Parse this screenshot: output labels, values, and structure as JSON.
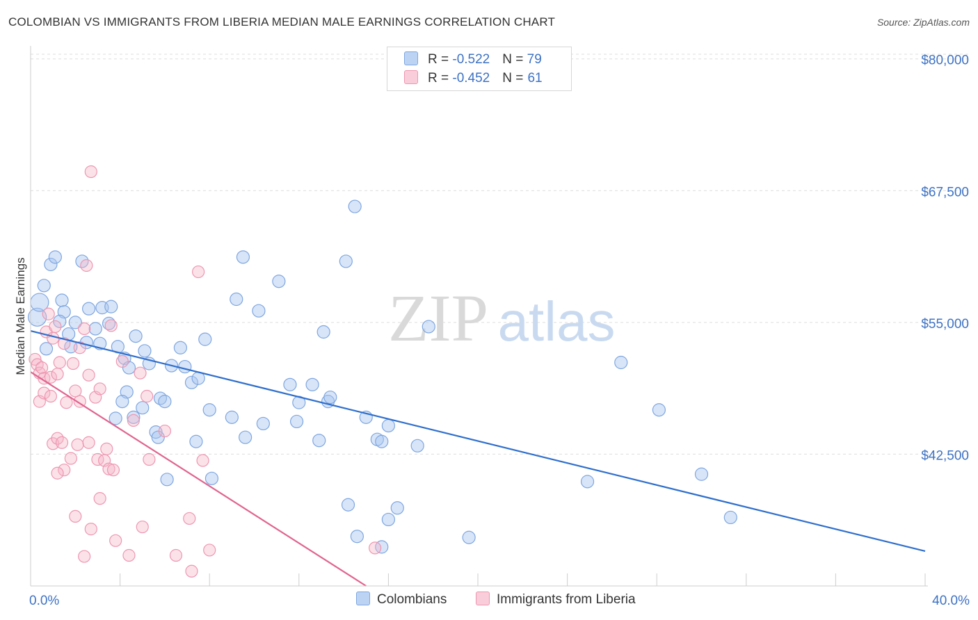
{
  "header": {
    "title": "COLOMBIAN VS IMMIGRANTS FROM LIBERIA MEDIAN MALE EARNINGS CORRELATION CHART",
    "source": "Source: ZipAtlas.com"
  },
  "watermark": {
    "zip": "ZIP",
    "atlas": "atlas"
  },
  "legend_top": {
    "rows": [
      {
        "r_label": "R = ",
        "r_value": "-0.522",
        "n_label": "N = ",
        "n_value": "79"
      },
      {
        "r_label": "R = ",
        "r_value": "-0.452",
        "n_label": "N = ",
        "n_value": "61"
      }
    ]
  },
  "chart_data": {
    "type": "scatter",
    "title": "COLOMBIAN VS IMMIGRANTS FROM LIBERIA MEDIAN MALE EARNINGS CORRELATION CHART",
    "xlabel": "",
    "ylabel": "Median Male Earnings",
    "xlim": [
      0,
      40
    ],
    "ylim": [
      30000,
      81500
    ],
    "x_tick_labels": [
      "0.0%",
      "40.0%"
    ],
    "y_ticks": [
      42500,
      55000,
      67500,
      80000
    ],
    "y_tick_labels": [
      "$42,500",
      "$55,000",
      "$67,500",
      "$80,000"
    ],
    "grid": true,
    "legend_placement": "top-center and bottom",
    "colors": {
      "colombians": "#a9c6ef",
      "colombians_line": "#2f6fcc",
      "liberia": "#f5b7c8",
      "liberia_line": "#e0648f"
    },
    "series": [
      {
        "name": "Colombians",
        "r": -0.522,
        "n": 79,
        "trend": [
          [
            0,
            54200
          ],
          [
            40,
            33300
          ]
        ],
        "points": [
          [
            0.3,
            55500
          ],
          [
            0.4,
            56900
          ],
          [
            0.6,
            58500
          ],
          [
            0.9,
            60500
          ],
          [
            1.1,
            61200
          ],
          [
            1.4,
            57100
          ],
          [
            1.5,
            56000
          ],
          [
            1.3,
            55100
          ],
          [
            1.7,
            53900
          ],
          [
            2.3,
            60800
          ],
          [
            2.6,
            56300
          ],
          [
            2.0,
            55000
          ],
          [
            2.5,
            53100
          ],
          [
            2.9,
            54400
          ],
          [
            3.1,
            53000
          ],
          [
            3.2,
            56400
          ],
          [
            3.5,
            54900
          ],
          [
            3.6,
            56500
          ],
          [
            3.9,
            52700
          ],
          [
            4.2,
            51600
          ],
          [
            4.4,
            50700
          ],
          [
            4.3,
            48400
          ],
          [
            4.7,
            53700
          ],
          [
            5.1,
            52300
          ],
          [
            5.3,
            51100
          ],
          [
            5.0,
            46900
          ],
          [
            4.1,
            47500
          ],
          [
            3.8,
            45900
          ],
          [
            4.6,
            46000
          ],
          [
            5.8,
            47800
          ],
          [
            6.0,
            47500
          ],
          [
            5.6,
            44600
          ],
          [
            5.7,
            44100
          ],
          [
            6.3,
            50900
          ],
          [
            6.9,
            50800
          ],
          [
            7.2,
            49300
          ],
          [
            6.7,
            52600
          ],
          [
            7.8,
            53400
          ],
          [
            9.2,
            57200
          ],
          [
            9.5,
            61200
          ],
          [
            7.5,
            49700
          ],
          [
            8.0,
            46700
          ],
          [
            9.0,
            46000
          ],
          [
            7.4,
            43700
          ],
          [
            9.6,
            44100
          ],
          [
            10.4,
            45400
          ],
          [
            10.2,
            56100
          ],
          [
            11.1,
            58900
          ],
          [
            11.6,
            49100
          ],
          [
            11.9,
            45600
          ],
          [
            12.0,
            47400
          ],
          [
            12.6,
            49100
          ],
          [
            12.9,
            43800
          ],
          [
            13.3,
            47500
          ],
          [
            13.4,
            47900
          ],
          [
            13.1,
            54100
          ],
          [
            14.1,
            60800
          ],
          [
            15.0,
            46000
          ],
          [
            15.5,
            43900
          ],
          [
            15.7,
            43700
          ],
          [
            16.0,
            45200
          ],
          [
            16.4,
            37400
          ],
          [
            17.3,
            43300
          ],
          [
            14.5,
            66000
          ],
          [
            17.8,
            54600
          ],
          [
            14.2,
            37700
          ],
          [
            14.6,
            34700
          ],
          [
            16.0,
            36300
          ],
          [
            15.7,
            33700
          ],
          [
            19.6,
            34600
          ],
          [
            24.9,
            39900
          ],
          [
            26.4,
            51200
          ],
          [
            28.1,
            46700
          ],
          [
            30.0,
            40600
          ],
          [
            31.3,
            36500
          ],
          [
            0.7,
            52500
          ],
          [
            1.8,
            52700
          ],
          [
            6.1,
            40100
          ],
          [
            8.1,
            40200
          ]
        ],
        "point_sizes": {
          "large_index": [
            0,
            1
          ]
        }
      },
      {
        "name": "Immigrants from Liberia",
        "r": -0.452,
        "n": 61,
        "trend": [
          [
            0,
            50300
          ],
          [
            15.0,
            30000
          ]
        ],
        "points": [
          [
            0.2,
            51500
          ],
          [
            0.3,
            51000
          ],
          [
            0.4,
            50200
          ],
          [
            0.5,
            50700
          ],
          [
            0.6,
            49700
          ],
          [
            0.8,
            55800
          ],
          [
            0.7,
            54100
          ],
          [
            1.0,
            53500
          ],
          [
            1.1,
            54600
          ],
          [
            0.9,
            49800
          ],
          [
            1.2,
            50100
          ],
          [
            0.4,
            47500
          ],
          [
            0.6,
            48300
          ],
          [
            0.9,
            48000
          ],
          [
            1.3,
            51200
          ],
          [
            1.5,
            53000
          ],
          [
            1.6,
            47400
          ],
          [
            1.9,
            51100
          ],
          [
            2.2,
            52600
          ],
          [
            2.4,
            54400
          ],
          [
            2.6,
            50000
          ],
          [
            2.2,
            47500
          ],
          [
            2.0,
            48500
          ],
          [
            2.9,
            47900
          ],
          [
            3.1,
            48700
          ],
          [
            2.7,
            69300
          ],
          [
            2.5,
            60400
          ],
          [
            3.6,
            54700
          ],
          [
            4.1,
            51300
          ],
          [
            4.9,
            50200
          ],
          [
            5.2,
            48000
          ],
          [
            4.6,
            45700
          ],
          [
            1.0,
            43500
          ],
          [
            1.2,
            44000
          ],
          [
            1.4,
            43600
          ],
          [
            1.8,
            42100
          ],
          [
            2.1,
            43400
          ],
          [
            2.6,
            43600
          ],
          [
            1.5,
            41000
          ],
          [
            1.2,
            40700
          ],
          [
            3.0,
            42000
          ],
          [
            3.3,
            41900
          ],
          [
            3.4,
            43000
          ],
          [
            3.5,
            41100
          ],
          [
            3.7,
            41000
          ],
          [
            2.0,
            36600
          ],
          [
            3.1,
            38300
          ],
          [
            2.7,
            35400
          ],
          [
            3.8,
            34300
          ],
          [
            5.0,
            35600
          ],
          [
            5.3,
            42000
          ],
          [
            6.0,
            44700
          ],
          [
            7.7,
            41900
          ],
          [
            7.5,
            59800
          ],
          [
            7.1,
            36400
          ],
          [
            6.5,
            32900
          ],
          [
            4.4,
            32900
          ],
          [
            2.4,
            32800
          ],
          [
            7.2,
            31400
          ],
          [
            8.0,
            33400
          ],
          [
            15.4,
            33600
          ]
        ]
      }
    ]
  },
  "legend_bottom": {
    "items": [
      {
        "label": "Colombians"
      },
      {
        "label": "Immigrants from Liberia"
      }
    ]
  }
}
